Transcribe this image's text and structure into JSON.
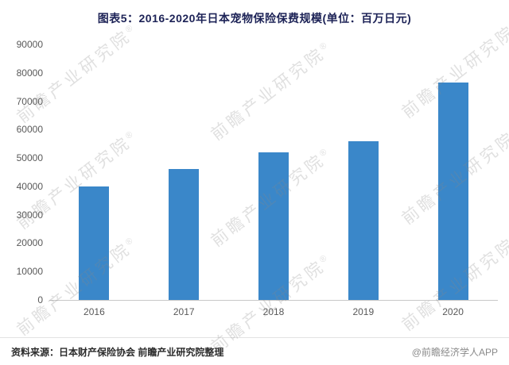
{
  "title": "图表5：2016-2020年日本宠物保险保费规模(单位：百万日元)",
  "chart_data": {
    "type": "bar",
    "categories": [
      "2016",
      "2017",
      "2018",
      "2019",
      "2020"
    ],
    "values": [
      40000,
      46000,
      52000,
      56000,
      76500
    ],
    "title": "图表5：2016-2020年日本宠物保险保费规模(单位：百万日元)",
    "xlabel": "",
    "ylabel": "",
    "ylim": [
      0,
      90000
    ],
    "yticks": [
      0,
      10000,
      20000,
      30000,
      40000,
      50000,
      60000,
      70000,
      80000,
      90000
    ],
    "grid": false,
    "legend": "none",
    "bar_color": "#3A87C9"
  },
  "footer": {
    "source": "资料来源：日本财产保险协会 前瞻产业研究院整理",
    "credit": "@前瞻经济学人APP"
  },
  "watermark": {
    "text": "前瞻产业研究院",
    "reg": "®"
  }
}
